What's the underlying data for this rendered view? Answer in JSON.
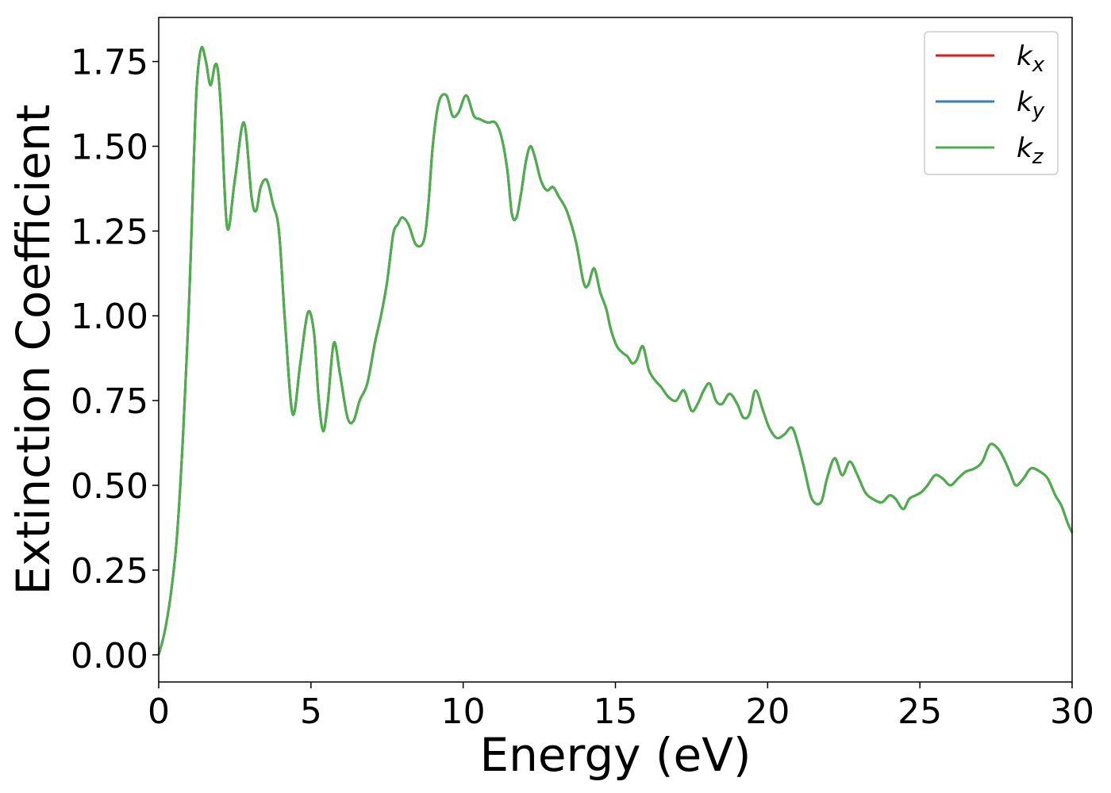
{
  "chart_data": {
    "type": "line",
    "xlabel": "Energy (eV)",
    "ylabel": "Extinction Coefficient",
    "xlim": [
      0,
      30
    ],
    "ylim": [
      -0.08,
      1.88
    ],
    "xticks": [
      0,
      5,
      10,
      15,
      20,
      25,
      30
    ],
    "xtick_labels": [
      "0",
      "5",
      "10",
      "15",
      "20",
      "25",
      "30"
    ],
    "yticks": [
      0,
      0.25,
      0.5,
      0.75,
      1.0,
      1.25,
      1.5,
      1.75
    ],
    "ytick_labels": [
      "0.00",
      "0.25",
      "0.50",
      "0.75",
      "1.00",
      "1.25",
      "1.50",
      "1.75"
    ],
    "grid": false,
    "legend_position": "top-right",
    "series": [
      {
        "name": "k",
        "subscript": "x",
        "color": "#e41a1c"
      },
      {
        "name": "k",
        "subscript": "y",
        "color": "#377eb8"
      },
      {
        "name": "k",
        "subscript": "z",
        "color": "#4daf4a"
      }
    ],
    "x": [
      0,
      0.2,
      0.4,
      0.6,
      0.8,
      1.0,
      1.15,
      1.25,
      1.4,
      1.55,
      1.7,
      1.85,
      1.95,
      2.05,
      2.25,
      2.5,
      2.8,
      3.05,
      3.2,
      3.35,
      3.55,
      3.75,
      3.95,
      4.15,
      4.4,
      4.65,
      4.9,
      5.1,
      5.25,
      5.4,
      5.55,
      5.75,
      5.95,
      6.2,
      6.4,
      6.6,
      6.85,
      7.1,
      7.3,
      7.5,
      7.7,
      7.85,
      8.0,
      8.2,
      8.45,
      8.7,
      8.85,
      9.0,
      9.2,
      9.45,
      9.65,
      9.85,
      10.1,
      10.35,
      10.55,
      10.8,
      11.05,
      11.25,
      11.45,
      11.6,
      11.75,
      11.9,
      12.05,
      12.2,
      12.35,
      12.55,
      12.75,
      12.95,
      13.15,
      13.4,
      13.7,
      13.95,
      14.1,
      14.3,
      14.5,
      14.7,
      14.85,
      15.05,
      15.25,
      15.4,
      15.55,
      15.7,
      15.9,
      16.1,
      16.3,
      16.5,
      16.75,
      17.0,
      17.25,
      17.5,
      17.7,
      17.9,
      18.1,
      18.3,
      18.5,
      18.75,
      19.0,
      19.2,
      19.4,
      19.6,
      19.85,
      20.05,
      20.3,
      20.55,
      20.8,
      21.0,
      21.2,
      21.45,
      21.75,
      21.95,
      22.2,
      22.45,
      22.7,
      22.95,
      23.2,
      23.45,
      23.75,
      24.0,
      24.2,
      24.45,
      24.65,
      24.85,
      25.05,
      25.25,
      25.5,
      25.75,
      26.0,
      26.25,
      26.5,
      26.8,
      27.05,
      27.3,
      27.55,
      27.75,
      27.95,
      28.15,
      28.4,
      28.65,
      28.95,
      29.2,
      29.45,
      29.65,
      29.85,
      30.0
    ],
    "y": [
      0.0,
      0.07,
      0.18,
      0.35,
      0.65,
      1.05,
      1.45,
      1.68,
      1.79,
      1.75,
      1.68,
      1.74,
      1.72,
      1.6,
      1.26,
      1.4,
      1.57,
      1.35,
      1.31,
      1.38,
      1.4,
      1.33,
      1.25,
      0.98,
      0.71,
      0.86,
      1.01,
      0.95,
      0.76,
      0.66,
      0.74,
      0.92,
      0.83,
      0.7,
      0.69,
      0.75,
      0.8,
      0.92,
      1.0,
      1.1,
      1.24,
      1.27,
      1.29,
      1.27,
      1.21,
      1.22,
      1.32,
      1.5,
      1.63,
      1.65,
      1.59,
      1.6,
      1.65,
      1.59,
      1.58,
      1.57,
      1.57,
      1.53,
      1.43,
      1.3,
      1.29,
      1.36,
      1.45,
      1.5,
      1.47,
      1.4,
      1.37,
      1.38,
      1.35,
      1.31,
      1.22,
      1.1,
      1.09,
      1.14,
      1.07,
      1.02,
      0.96,
      0.91,
      0.89,
      0.88,
      0.86,
      0.87,
      0.91,
      0.84,
      0.81,
      0.79,
      0.76,
      0.75,
      0.78,
      0.72,
      0.74,
      0.78,
      0.8,
      0.75,
      0.74,
      0.77,
      0.74,
      0.7,
      0.71,
      0.78,
      0.72,
      0.67,
      0.64,
      0.65,
      0.67,
      0.62,
      0.55,
      0.46,
      0.45,
      0.52,
      0.58,
      0.53,
      0.57,
      0.53,
      0.48,
      0.46,
      0.45,
      0.47,
      0.46,
      0.43,
      0.46,
      0.47,
      0.48,
      0.5,
      0.53,
      0.52,
      0.5,
      0.52,
      0.54,
      0.55,
      0.57,
      0.62,
      0.61,
      0.58,
      0.54,
      0.5,
      0.52,
      0.55,
      0.54,
      0.52,
      0.47,
      0.44,
      0.39,
      0.36
    ]
  }
}
